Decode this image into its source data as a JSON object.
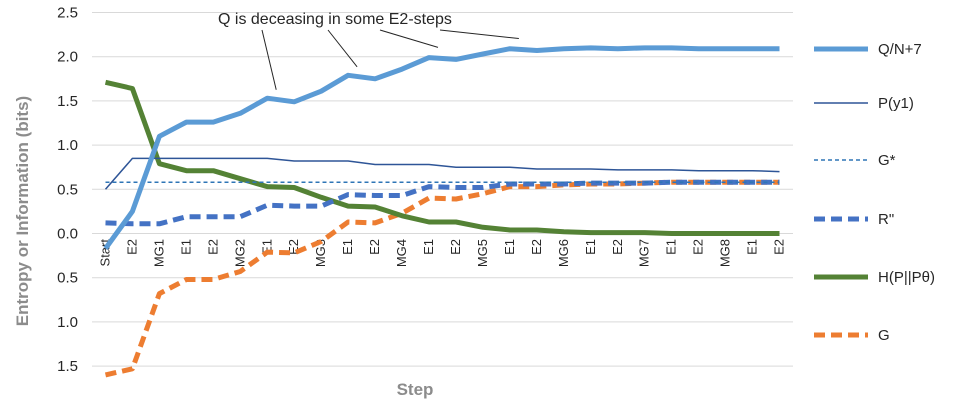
{
  "chart_data": {
    "type": "line",
    "title": "",
    "xlabel": "Step",
    "ylabel": "Entropy or Information  (bits)",
    "ylim": [
      -1.6,
      2.5
    ],
    "y_tick_values": [
      -1.5,
      -1.0,
      -0.5,
      0.0,
      0.5,
      1.0,
      1.5,
      2.0,
      2.5
    ],
    "y_tick_labels": [
      "1.5",
      "1.0",
      "0.5",
      "0.0",
      "0.5",
      "1.0",
      "1.5",
      "2.0",
      "2.5"
    ],
    "grid": true,
    "legend_position": "right",
    "categories": [
      "Start",
      "E2",
      "MG1",
      "E1",
      "E2",
      "MG2",
      "E1",
      "E2",
      "MG3",
      "E1",
      "E2",
      "MG4",
      "E1",
      "E2",
      "MG5",
      "E1",
      "E2",
      "MG6",
      "E1",
      "E2",
      "MG7",
      "E1",
      "E2",
      "MG8",
      "E1",
      "E2"
    ],
    "series": [
      {
        "name": "Q/N+7",
        "color": "#5b9bd5",
        "dash": "solid",
        "width": 5,
        "values": [
          -0.17,
          0.25,
          1.1,
          1.26,
          1.26,
          1.36,
          1.53,
          1.49,
          1.61,
          1.79,
          1.75,
          1.86,
          1.99,
          1.97,
          2.03,
          2.09,
          2.07,
          2.09,
          2.1,
          2.09,
          2.1,
          2.1,
          2.09,
          2.09,
          2.09,
          2.09
        ]
      },
      {
        "name": "P(y1)",
        "color": "#2e5597",
        "dash": "solid",
        "width": 1.5,
        "values": [
          0.5,
          0.85,
          0.85,
          0.85,
          0.85,
          0.85,
          0.85,
          0.82,
          0.82,
          0.82,
          0.78,
          0.78,
          0.78,
          0.75,
          0.75,
          0.75,
          0.73,
          0.73,
          0.73,
          0.72,
          0.72,
          0.72,
          0.71,
          0.71,
          0.71,
          0.7
        ]
      },
      {
        "name": "G*",
        "color": "#2e75b6",
        "dash": "4,3",
        "width": 1.5,
        "values": [
          0.58,
          0.58,
          0.58,
          0.58,
          0.58,
          0.58,
          0.58,
          0.58,
          0.58,
          0.58,
          0.58,
          0.58,
          0.58,
          0.58,
          0.58,
          0.58,
          0.58,
          0.58,
          0.58,
          0.58,
          0.58,
          0.58,
          0.58,
          0.58,
          0.58,
          0.58
        ]
      },
      {
        "name": "R\"",
        "color": "#4472c4",
        "dash": "11,6",
        "width": 5,
        "values": [
          0.12,
          0.11,
          0.11,
          0.19,
          0.19,
          0.19,
          0.32,
          0.31,
          0.31,
          0.44,
          0.43,
          0.43,
          0.53,
          0.52,
          0.52,
          0.56,
          0.56,
          0.56,
          0.57,
          0.57,
          0.57,
          0.58,
          0.58,
          0.58,
          0.58,
          0.58
        ]
      },
      {
        "name": "H(P||Pθ)",
        "color": "#548235",
        "dash": "solid",
        "width": 5,
        "values": [
          1.71,
          1.64,
          0.79,
          0.71,
          0.71,
          0.62,
          0.53,
          0.52,
          0.41,
          0.31,
          0.3,
          0.2,
          0.13,
          0.13,
          0.07,
          0.04,
          0.04,
          0.02,
          0.01,
          0.01,
          0.01,
          0.0,
          0.0,
          0.0,
          0.0,
          0.0
        ]
      },
      {
        "name": "G",
        "color": "#ed7d31",
        "dash": "11,6",
        "width": 5,
        "values": [
          -1.6,
          -1.53,
          -0.68,
          -0.52,
          -0.52,
          -0.43,
          -0.21,
          -0.22,
          -0.09,
          0.13,
          0.12,
          0.23,
          0.4,
          0.39,
          0.45,
          0.53,
          0.53,
          0.55,
          0.56,
          0.56,
          0.57,
          0.58,
          0.58,
          0.58,
          0.58,
          0.58
        ]
      }
    ],
    "annotation": {
      "text": "Q is deceasing in some E2-steps",
      "targets": [
        7,
        10,
        13,
        16
      ]
    }
  }
}
